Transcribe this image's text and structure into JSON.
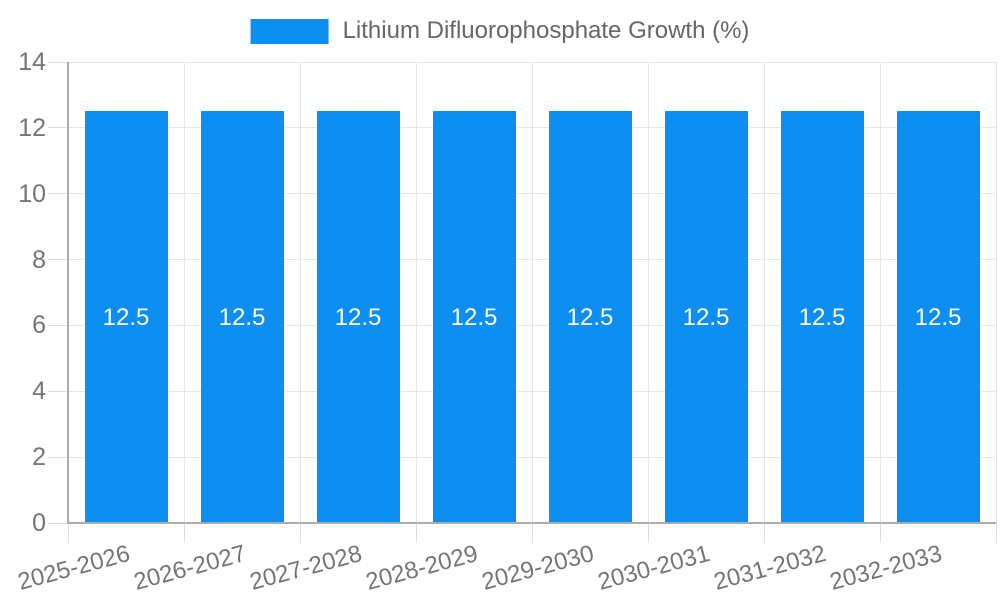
{
  "legend": {
    "label": "Lithium Difluorophosphate Growth (%)"
  },
  "chart_data": {
    "type": "bar",
    "title": "",
    "xlabel": "",
    "ylabel": "",
    "series_name": "Lithium Difluorophosphate Growth (%)",
    "categories": [
      "2025-2026",
      "2026-2027",
      "2027-2028",
      "2028-2029",
      "2029-2030",
      "2030-2031",
      "2031-2032",
      "2032-2033"
    ],
    "values": [
      12.5,
      12.5,
      12.5,
      12.5,
      12.5,
      12.5,
      12.5,
      12.5
    ],
    "value_labels": [
      "12.5",
      "12.5",
      "12.5",
      "12.5",
      "12.5",
      "12.5",
      "12.5",
      "12.5"
    ],
    "ylim": [
      0,
      14
    ],
    "yticks": [
      0,
      2,
      4,
      6,
      8,
      10,
      12,
      14
    ],
    "grid": true,
    "legend_position": "top",
    "x_label_rotation_deg": -15,
    "colors": {
      "bar": "#0d8ff2",
      "bar_label": "#ffffff",
      "grid": "#e6e6e6",
      "tick": "#dcdcdc",
      "axis": "#ababab",
      "axis_label": "#757575",
      "legend_text": "#666666"
    }
  }
}
